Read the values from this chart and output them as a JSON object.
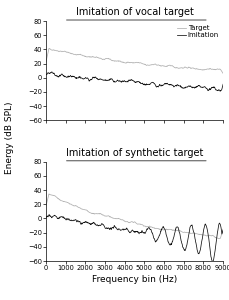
{
  "title1": "Imitation of vocal target",
  "title2": "Imitation of synthetic target",
  "xlabel": "Frequency bin (Hz)",
  "ylabel": "Energy (dB SPL)",
  "legend_target": "Target",
  "legend_imitation": "Imitation",
  "xlim": [
    0,
    9000
  ],
  "xticks": [
    0,
    1000,
    2000,
    3000,
    4000,
    5000,
    6000,
    7000,
    8000,
    9000
  ],
  "xticklabels": [
    "0",
    "1000",
    "2000",
    "3000",
    "4000",
    "5000",
    "6000",
    "7000",
    "8000",
    "9000"
  ],
  "ylim": [
    -60,
    80
  ],
  "yticks": [
    -60,
    -40,
    -20,
    0,
    20,
    40,
    60,
    80
  ],
  "target_color": "#b0b0b0",
  "imitation_color": "#111111",
  "background_color": "#ffffff",
  "title_fontsize": 7.0,
  "axis_label_fontsize": 6.5,
  "tick_fontsize": 4.8,
  "legend_fontsize": 5.0,
  "underline_x0": 0.1,
  "underline_x1": 0.92
}
